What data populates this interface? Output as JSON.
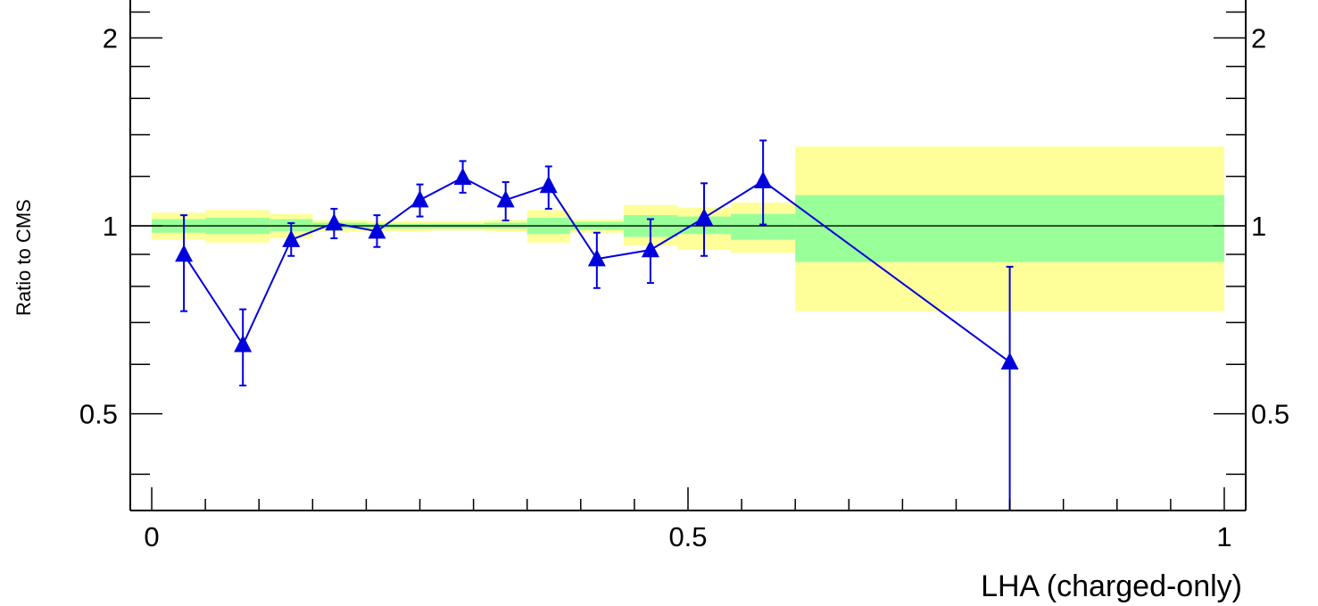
{
  "chart_data": {
    "type": "scatter",
    "xlabel": "LHA (charged-only)",
    "ylabel": "Ratio to CMS",
    "xlim": [
      -0.02,
      1.02
    ],
    "ylim": [
      0.35,
      2.3
    ],
    "y_scale": "log",
    "x_ticks": [
      {
        "value": 0,
        "label": "0"
      },
      {
        "value": 0.5,
        "label": "0.5"
      },
      {
        "value": 1,
        "label": "1"
      }
    ],
    "y_ticks": [
      {
        "value": 0.5,
        "label": "0.5"
      },
      {
        "value": 1,
        "label": "1"
      },
      {
        "value": 2,
        "label": "2"
      }
    ],
    "reference_line": 1,
    "uncertainty_bands": [
      {
        "x0": 0.0,
        "x1": 0.05,
        "stat_lo": 0.975,
        "stat_hi": 1.025,
        "total_lo": 0.95,
        "total_hi": 1.05
      },
      {
        "x0": 0.05,
        "x1": 0.11,
        "stat_lo": 0.97,
        "stat_hi": 1.03,
        "total_lo": 0.94,
        "total_hi": 1.06
      },
      {
        "x0": 0.11,
        "x1": 0.15,
        "stat_lo": 0.98,
        "stat_hi": 1.025,
        "total_lo": 0.955,
        "total_hi": 1.045
      },
      {
        "x0": 0.15,
        "x1": 0.2,
        "stat_lo": 0.99,
        "stat_hi": 1.012,
        "total_lo": 0.978,
        "total_hi": 1.022
      },
      {
        "x0": 0.2,
        "x1": 0.26,
        "stat_lo": 0.99,
        "stat_hi": 1.008,
        "total_lo": 0.98,
        "total_hi": 1.018
      },
      {
        "x0": 0.26,
        "x1": 0.31,
        "stat_lo": 0.99,
        "stat_hi": 1.008,
        "total_lo": 0.983,
        "total_hi": 1.018
      },
      {
        "x0": 0.31,
        "x1": 0.35,
        "stat_lo": 0.99,
        "stat_hi": 1.012,
        "total_lo": 0.98,
        "total_hi": 1.022
      },
      {
        "x0": 0.35,
        "x1": 0.39,
        "stat_lo": 0.97,
        "stat_hi": 1.03,
        "total_lo": 0.94,
        "total_hi": 1.06
      },
      {
        "x0": 0.39,
        "x1": 0.44,
        "stat_lo": 0.985,
        "stat_hi": 1.015,
        "total_lo": 0.975,
        "total_hi": 1.025
      },
      {
        "x0": 0.44,
        "x1": 0.49,
        "stat_lo": 0.96,
        "stat_hi": 1.04,
        "total_lo": 0.93,
        "total_hi": 1.08
      },
      {
        "x0": 0.49,
        "x1": 0.54,
        "stat_lo": 0.97,
        "stat_hi": 1.035,
        "total_lo": 0.915,
        "total_hi": 1.07
      },
      {
        "x0": 0.54,
        "x1": 0.6,
        "stat_lo": 0.95,
        "stat_hi": 1.045,
        "total_lo": 0.905,
        "total_hi": 1.09
      },
      {
        "x0": 0.6,
        "x1": 1.0,
        "stat_lo": 0.875,
        "stat_hi": 1.12,
        "total_lo": 0.73,
        "total_hi": 1.34
      }
    ],
    "series": [
      {
        "color": "#0000dd",
        "points": [
          {
            "x": 0.03,
            "y": 0.9,
            "lo": 0.73,
            "hi": 1.04
          },
          {
            "x": 0.085,
            "y": 0.645,
            "lo": 0.555,
            "hi": 0.735
          },
          {
            "x": 0.13,
            "y": 0.95,
            "lo": 0.895,
            "hi": 1.01
          },
          {
            "x": 0.17,
            "y": 1.01,
            "lo": 0.955,
            "hi": 1.065
          },
          {
            "x": 0.21,
            "y": 0.98,
            "lo": 0.925,
            "hi": 1.04
          },
          {
            "x": 0.25,
            "y": 1.1,
            "lo": 1.035,
            "hi": 1.165
          },
          {
            "x": 0.29,
            "y": 1.195,
            "lo": 1.13,
            "hi": 1.27
          },
          {
            "x": 0.33,
            "y": 1.1,
            "lo": 1.02,
            "hi": 1.175
          },
          {
            "x": 0.37,
            "y": 1.16,
            "lo": 1.065,
            "hi": 1.245
          },
          {
            "x": 0.415,
            "y": 0.885,
            "lo": 0.795,
            "hi": 0.975
          },
          {
            "x": 0.465,
            "y": 0.915,
            "lo": 0.81,
            "hi": 1.025
          },
          {
            "x": 0.515,
            "y": 1.03,
            "lo": 0.895,
            "hi": 1.17
          },
          {
            "x": 0.57,
            "y": 1.18,
            "lo": 1.005,
            "hi": 1.37
          },
          {
            "x": 0.8,
            "y": 0.605,
            "lo": 0.35,
            "hi": 0.86
          }
        ]
      }
    ],
    "colors": {
      "stat_band": "#99ff99",
      "total_band": "#ffff99",
      "series": "#0000dd",
      "axis": "#000000"
    }
  }
}
